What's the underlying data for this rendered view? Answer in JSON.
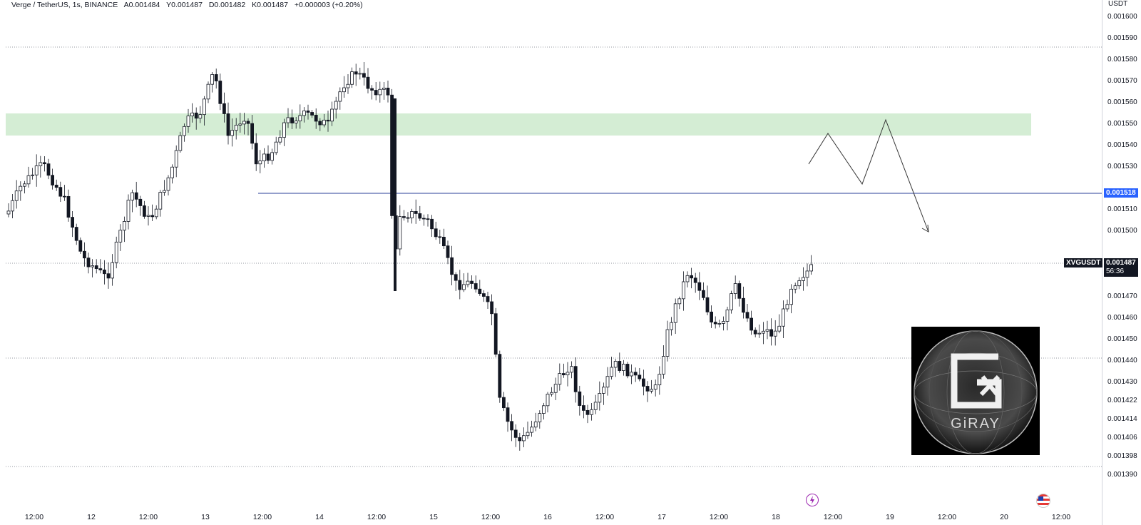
{
  "header": {
    "symbol": "Verge / TetherUS, 1s, BINANCE",
    "open": "A0.001484",
    "high": "Y0.001487",
    "low": "D0.001482",
    "close": "K0.001487",
    "change": "+0.000003 (+0.20%)"
  },
  "price_axis": {
    "currency": "USDT",
    "ticks": [
      "0.001600",
      "0.001590",
      "0.001580",
      "0.001570",
      "0.001560",
      "0.001550",
      "0.001540",
      "0.001530",
      "0.001510",
      "0.001500",
      "0.001470",
      "0.001460",
      "0.001450",
      "0.001440",
      "0.001430",
      "0.001422",
      "0.001414",
      "0.001406",
      "0.001398",
      "0.001390"
    ],
    "blue_line_price": "0.001518",
    "current_price": "0.001487",
    "countdown": "56:36",
    "symbol_tag": "XVGUSDT"
  },
  "time_axis": {
    "labels": [
      "12:00",
      "12",
      "12:00",
      "13",
      "12:00",
      "14",
      "12:00",
      "15",
      "12:00",
      "16",
      "12:00",
      "17",
      "12:00",
      "18",
      "12:00",
      "19",
      "12:00",
      "20",
      "12:00"
    ]
  },
  "logo": {
    "text": "GiRAY"
  },
  "colors": {
    "zone_fill": "#d4edd4",
    "blue_line": "#2a3f9a",
    "current_tag_bg": "#131722",
    "blue_tag_bg": "#2962ff",
    "candle": "#131722"
  },
  "icons": {
    "lightning": "lightning-icon",
    "flag": "us-flag-icon"
  }
}
